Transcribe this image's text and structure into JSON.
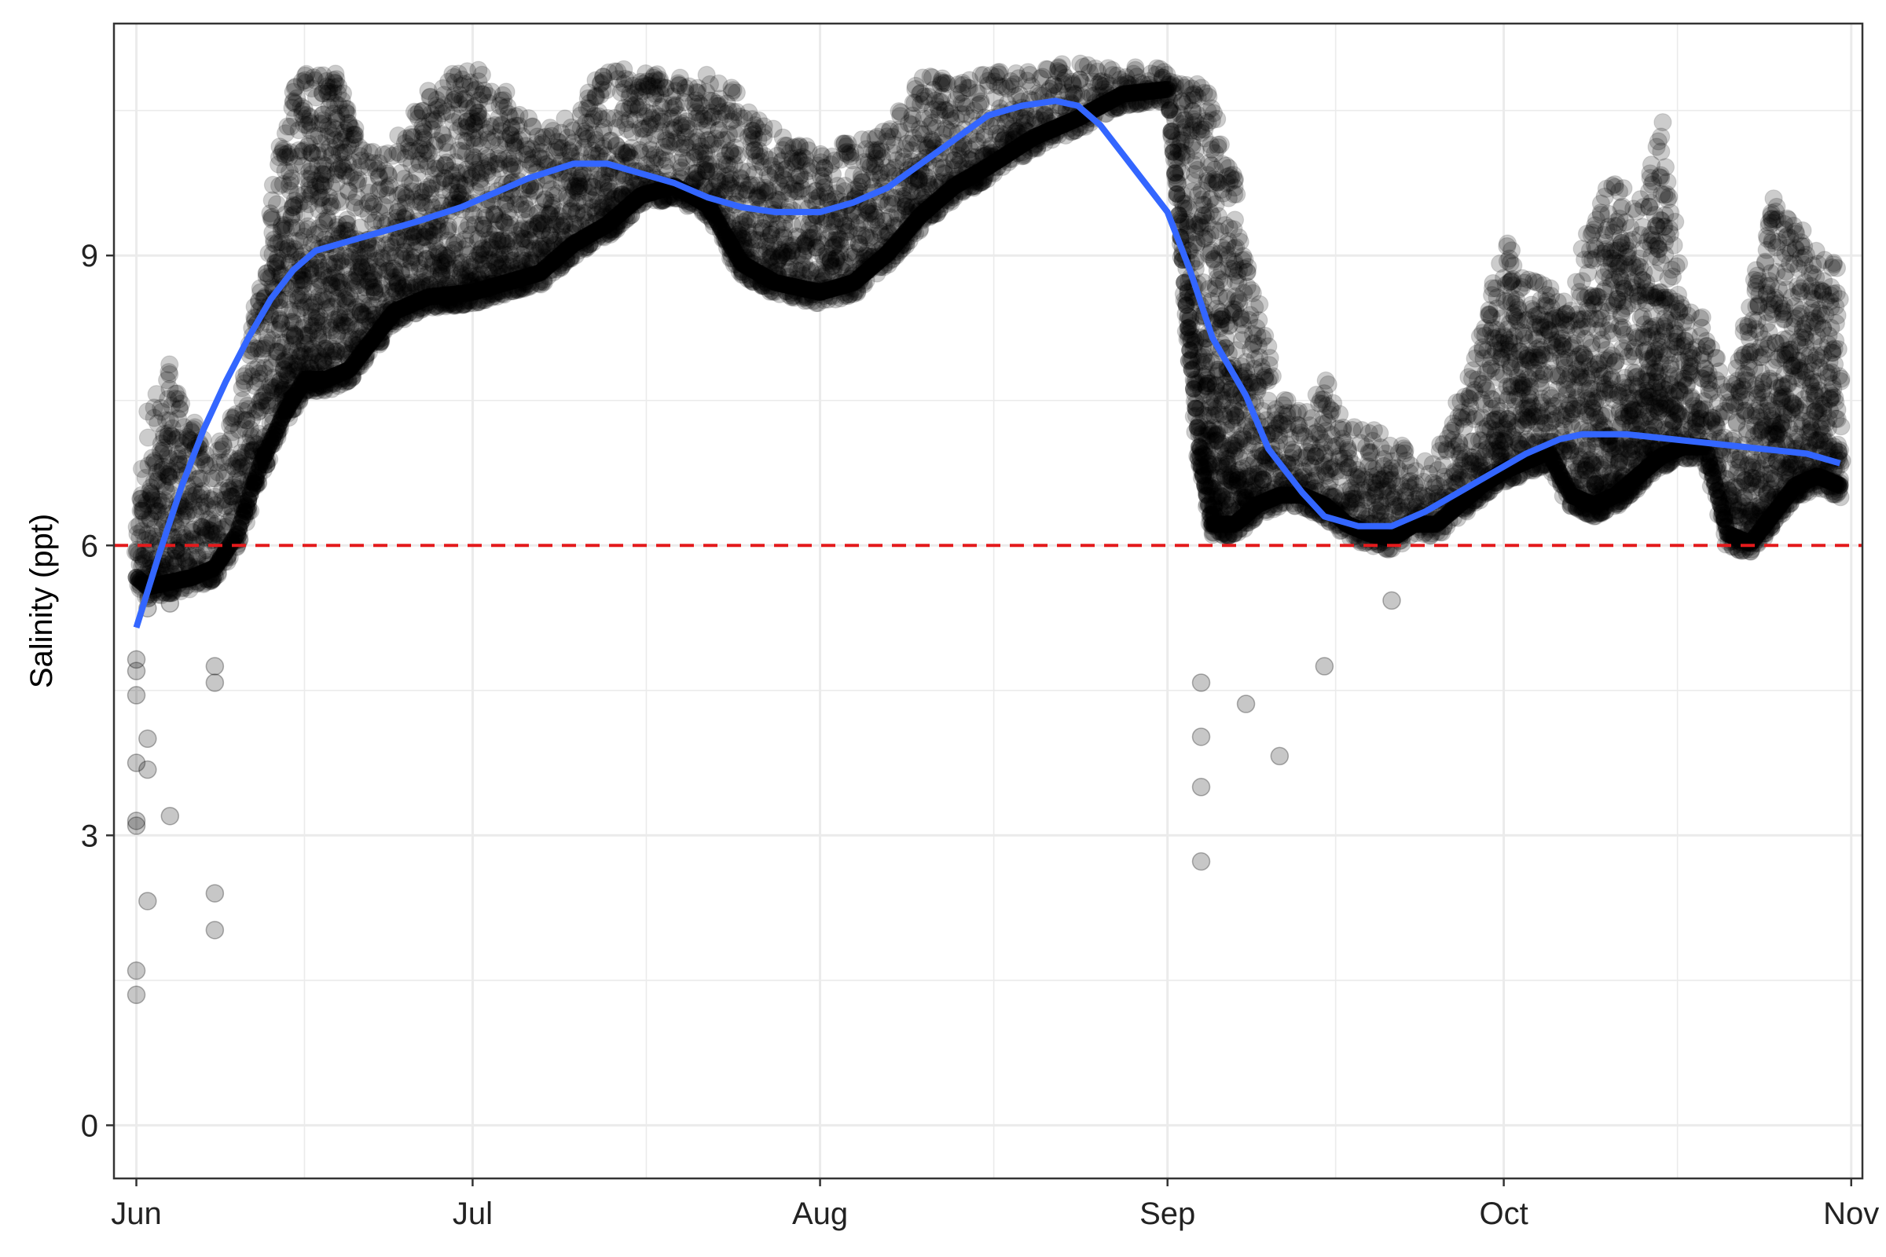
{
  "chart_data": {
    "type": "scatter",
    "title": "",
    "xlabel": "",
    "ylabel": "Salinity (ppt)",
    "x_axis": {
      "type": "date",
      "range": [
        "2017-05-30",
        "2017-11-02"
      ],
      "ticks": [
        {
          "label": "Jun",
          "date": "2017-06-01"
        },
        {
          "label": "Jul",
          "date": "2017-07-01"
        },
        {
          "label": "Aug",
          "date": "2017-08-01"
        },
        {
          "label": "Sep",
          "date": "2017-09-01"
        },
        {
          "label": "Oct",
          "date": "2017-10-01"
        },
        {
          "label": "Nov",
          "date": "2017-11-01"
        }
      ]
    },
    "y_axis": {
      "range": [
        -0.55,
        11.4
      ],
      "ticks": [
        0,
        3,
        6,
        9
      ]
    },
    "grid": true,
    "legend": "none",
    "reference_line": {
      "y": 6,
      "color": "#e41a1c",
      "style": "dashed"
    },
    "series": [
      {
        "kind": "points",
        "color": "#000000",
        "opacity": 0.2,
        "band_upper": [
          [
            "2017-06-01",
            6.3
          ],
          [
            "2017-06-02",
            7.4
          ],
          [
            "2017-06-04",
            7.9
          ],
          [
            "2017-06-06",
            7.3
          ],
          [
            "2017-06-08",
            7.0
          ],
          [
            "2017-06-10",
            7.5
          ],
          [
            "2017-06-12",
            8.8
          ],
          [
            "2017-06-14",
            10.2
          ],
          [
            "2017-06-15",
            10.9
          ],
          [
            "2017-06-17",
            10.95
          ],
          [
            "2017-06-19",
            10.9
          ],
          [
            "2017-06-21",
            10.2
          ],
          [
            "2017-06-23",
            10.1
          ],
          [
            "2017-06-25",
            10.3
          ],
          [
            "2017-06-27",
            10.7
          ],
          [
            "2017-06-29",
            10.9
          ],
          [
            "2017-07-01",
            10.95
          ],
          [
            "2017-07-04",
            10.7
          ],
          [
            "2017-07-07",
            10.3
          ],
          [
            "2017-07-10",
            10.5
          ],
          [
            "2017-07-13",
            10.95
          ],
          [
            "2017-07-16",
            10.95
          ],
          [
            "2017-07-19",
            10.85
          ],
          [
            "2017-07-22",
            10.9
          ],
          [
            "2017-07-25",
            10.7
          ],
          [
            "2017-07-28",
            10.3
          ],
          [
            "2017-08-01",
            10.1
          ],
          [
            "2017-08-04",
            10.2
          ],
          [
            "2017-08-07",
            10.3
          ],
          [
            "2017-08-10",
            10.9
          ],
          [
            "2017-08-13",
            10.8
          ],
          [
            "2017-08-16",
            10.9
          ],
          [
            "2017-08-20",
            10.95
          ],
          [
            "2017-08-24",
            11.0
          ],
          [
            "2017-08-28",
            10.95
          ],
          [
            "2017-09-01",
            10.95
          ],
          [
            "2017-09-03",
            10.8
          ],
          [
            "2017-09-05",
            10.7
          ],
          [
            "2017-09-07",
            9.8
          ],
          [
            "2017-09-09",
            8.5
          ],
          [
            "2017-09-11",
            7.6
          ],
          [
            "2017-09-13",
            7.4
          ],
          [
            "2017-09-15",
            7.8
          ],
          [
            "2017-09-17",
            7.3
          ],
          [
            "2017-09-19",
            7.2
          ],
          [
            "2017-09-21",
            7.2
          ],
          [
            "2017-09-23",
            6.9
          ],
          [
            "2017-09-25",
            6.9
          ],
          [
            "2017-09-27",
            7.5
          ],
          [
            "2017-09-29",
            8.2
          ],
          [
            "2017-10-01",
            9.2
          ],
          [
            "2017-10-03",
            8.8
          ],
          [
            "2017-10-05",
            8.7
          ],
          [
            "2017-10-07",
            8.5
          ],
          [
            "2017-10-09",
            9.5
          ],
          [
            "2017-10-11",
            9.8
          ],
          [
            "2017-10-13",
            9.5
          ],
          [
            "2017-10-15",
            10.4
          ],
          [
            "2017-10-17",
            8.6
          ],
          [
            "2017-10-19",
            8.3
          ],
          [
            "2017-10-21",
            7.6
          ],
          [
            "2017-10-23",
            8.5
          ],
          [
            "2017-10-25",
            9.6
          ],
          [
            "2017-10-27",
            9.4
          ],
          [
            "2017-10-29",
            9.1
          ],
          [
            "2017-10-31",
            8.9
          ]
        ],
        "band_lower": [
          [
            "2017-06-01",
            5.55
          ],
          [
            "2017-06-02",
            5.45
          ],
          [
            "2017-06-04",
            5.5
          ],
          [
            "2017-06-06",
            5.55
          ],
          [
            "2017-06-08",
            5.65
          ],
          [
            "2017-06-10",
            6.0
          ],
          [
            "2017-06-12",
            6.7
          ],
          [
            "2017-06-14",
            7.2
          ],
          [
            "2017-06-16",
            7.6
          ],
          [
            "2017-06-18",
            7.6
          ],
          [
            "2017-06-20",
            7.7
          ],
          [
            "2017-06-22",
            8.0
          ],
          [
            "2017-06-24",
            8.3
          ],
          [
            "2017-06-27",
            8.45
          ],
          [
            "2017-07-01",
            8.5
          ],
          [
            "2017-07-04",
            8.6
          ],
          [
            "2017-07-07",
            8.7
          ],
          [
            "2017-07-10",
            9.0
          ],
          [
            "2017-07-13",
            9.2
          ],
          [
            "2017-07-16",
            9.5
          ],
          [
            "2017-07-19",
            9.6
          ],
          [
            "2017-07-22",
            9.4
          ],
          [
            "2017-07-25",
            8.8
          ],
          [
            "2017-07-28",
            8.6
          ],
          [
            "2017-08-01",
            8.5
          ],
          [
            "2017-08-04",
            8.6
          ],
          [
            "2017-08-07",
            8.9
          ],
          [
            "2017-08-10",
            9.3
          ],
          [
            "2017-08-13",
            9.6
          ],
          [
            "2017-08-16",
            9.8
          ],
          [
            "2017-08-20",
            10.1
          ],
          [
            "2017-08-24",
            10.3
          ],
          [
            "2017-08-28",
            10.55
          ],
          [
            "2017-09-01",
            10.6
          ],
          [
            "2017-09-02",
            9.3
          ],
          [
            "2017-09-03",
            7.9
          ],
          [
            "2017-09-04",
            6.7
          ],
          [
            "2017-09-05",
            6.1
          ],
          [
            "2017-09-07",
            6.1
          ],
          [
            "2017-09-09",
            6.3
          ],
          [
            "2017-09-11",
            6.4
          ],
          [
            "2017-09-13",
            6.4
          ],
          [
            "2017-09-15",
            6.3
          ],
          [
            "2017-09-17",
            6.1
          ],
          [
            "2017-09-19",
            6.0
          ],
          [
            "2017-09-21",
            5.95
          ],
          [
            "2017-09-23",
            6.1
          ],
          [
            "2017-09-25",
            6.1
          ],
          [
            "2017-09-27",
            6.3
          ],
          [
            "2017-09-29",
            6.5
          ],
          [
            "2017-10-01",
            6.65
          ],
          [
            "2017-10-03",
            6.75
          ],
          [
            "2017-10-05",
            6.85
          ],
          [
            "2017-10-07",
            6.4
          ],
          [
            "2017-10-09",
            6.3
          ],
          [
            "2017-10-11",
            6.4
          ],
          [
            "2017-10-13",
            6.6
          ],
          [
            "2017-10-15",
            6.8
          ],
          [
            "2017-10-17",
            6.9
          ],
          [
            "2017-10-19",
            6.9
          ],
          [
            "2017-10-21",
            6.0
          ],
          [
            "2017-10-23",
            5.9
          ],
          [
            "2017-10-25",
            6.2
          ],
          [
            "2017-10-27",
            6.5
          ],
          [
            "2017-10-29",
            6.6
          ],
          [
            "2017-10-31",
            6.5
          ]
        ],
        "outliers": [
          [
            "2017-06-01",
            1.35
          ],
          [
            "2017-06-01",
            1.6
          ],
          [
            "2017-06-01",
            3.1
          ],
          [
            "2017-06-01",
            3.15
          ],
          [
            "2017-06-01",
            4.45
          ],
          [
            "2017-06-01",
            4.7
          ],
          [
            "2017-06-01",
            4.82
          ],
          [
            "2017-06-01",
            3.75
          ],
          [
            "2017-06-02",
            4.0
          ],
          [
            "2017-06-02",
            3.68
          ],
          [
            "2017-06-02",
            2.32
          ],
          [
            "2017-06-04",
            3.2
          ],
          [
            "2017-06-04",
            5.4
          ],
          [
            "2017-06-02",
            5.35
          ],
          [
            "2017-06-08",
            2.4
          ],
          [
            "2017-06-08",
            2.02
          ],
          [
            "2017-06-08",
            4.75
          ],
          [
            "2017-06-08",
            4.58
          ],
          [
            "2017-09-04",
            4.58
          ],
          [
            "2017-09-04",
            4.02
          ],
          [
            "2017-09-04",
            3.5
          ],
          [
            "2017-09-04",
            2.73
          ],
          [
            "2017-09-08",
            4.36
          ],
          [
            "2017-09-11",
            3.82
          ],
          [
            "2017-09-15",
            4.75
          ],
          [
            "2017-09-21",
            5.43
          ]
        ]
      },
      {
        "kind": "smooth",
        "color": "#3366ff",
        "values": [
          [
            "2017-06-01",
            5.15
          ],
          [
            "2017-06-03",
            5.9
          ],
          [
            "2017-06-05",
            6.6
          ],
          [
            "2017-06-07",
            7.2
          ],
          [
            "2017-06-09",
            7.7
          ],
          [
            "2017-06-11",
            8.15
          ],
          [
            "2017-06-13",
            8.55
          ],
          [
            "2017-06-15",
            8.85
          ],
          [
            "2017-06-17",
            9.05
          ],
          [
            "2017-06-20",
            9.15
          ],
          [
            "2017-06-23",
            9.25
          ],
          [
            "2017-06-26",
            9.35
          ],
          [
            "2017-06-30",
            9.5
          ],
          [
            "2017-07-03",
            9.65
          ],
          [
            "2017-07-06",
            9.8
          ],
          [
            "2017-07-10",
            9.95
          ],
          [
            "2017-07-13",
            9.95
          ],
          [
            "2017-07-16",
            9.85
          ],
          [
            "2017-07-19",
            9.75
          ],
          [
            "2017-07-22",
            9.6
          ],
          [
            "2017-07-25",
            9.5
          ],
          [
            "2017-07-28",
            9.45
          ],
          [
            "2017-08-01",
            9.45
          ],
          [
            "2017-08-04",
            9.55
          ],
          [
            "2017-08-07",
            9.7
          ],
          [
            "2017-08-10",
            9.95
          ],
          [
            "2017-08-13",
            10.2
          ],
          [
            "2017-08-16",
            10.45
          ],
          [
            "2017-08-19",
            10.55
          ],
          [
            "2017-08-22",
            10.6
          ],
          [
            "2017-08-24",
            10.55
          ],
          [
            "2017-08-26",
            10.35
          ],
          [
            "2017-08-28",
            10.05
          ],
          [
            "2017-08-30",
            9.75
          ],
          [
            "2017-09-01",
            9.45
          ],
          [
            "2017-09-03",
            8.85
          ],
          [
            "2017-09-05",
            8.15
          ],
          [
            "2017-09-08",
            7.55
          ],
          [
            "2017-09-10",
            7.0
          ],
          [
            "2017-09-13",
            6.55
          ],
          [
            "2017-09-15",
            6.3
          ],
          [
            "2017-09-18",
            6.2
          ],
          [
            "2017-09-21",
            6.2
          ],
          [
            "2017-09-24",
            6.35
          ],
          [
            "2017-09-27",
            6.55
          ],
          [
            "2017-09-30",
            6.75
          ],
          [
            "2017-10-03",
            6.95
          ],
          [
            "2017-10-06",
            7.1
          ],
          [
            "2017-10-08",
            7.15
          ],
          [
            "2017-10-12",
            7.15
          ],
          [
            "2017-10-16",
            7.1
          ],
          [
            "2017-10-20",
            7.05
          ],
          [
            "2017-10-24",
            7.0
          ],
          [
            "2017-10-28",
            6.95
          ],
          [
            "2017-10-31",
            6.85
          ]
        ]
      }
    ]
  }
}
